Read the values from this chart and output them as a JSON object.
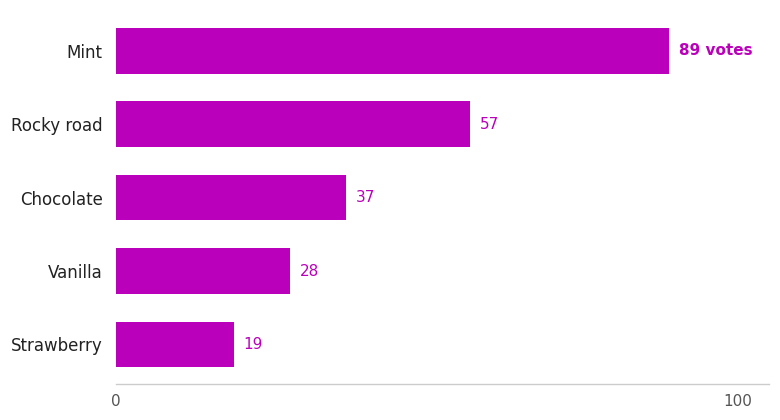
{
  "categories": [
    "Mint",
    "Rocky road",
    "Chocolate",
    "Vanilla",
    "Strawberry"
  ],
  "values": [
    89,
    57,
    37,
    28,
    19
  ],
  "bar_color": "#BB00BB",
  "label_color": "#BB00BB",
  "label_fontsize": 11,
  "ylabel_fontsize": 12,
  "tick_fontsize": 11,
  "xlim": [
    0,
    105
  ],
  "xticks": [
    0,
    100
  ],
  "bar_height": 0.62,
  "special_index": 0,
  "background_color": "#ffffff",
  "spine_color": "#cccccc"
}
